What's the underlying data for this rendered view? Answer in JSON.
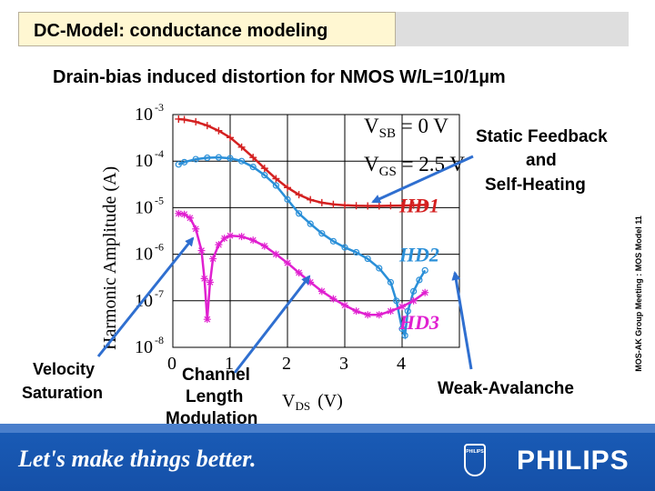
{
  "slide": {
    "title": "DC-Model: conductance modeling",
    "subtitle": "Drain-bias induced distortion for NMOS W/L=10/1µm",
    "side_note": "MOS-AK Group Meeting : MOS Model 11",
    "footer_slogan": "Let's make things better.",
    "brand": "PHILIPS",
    "shield_text": "PHILIPS"
  },
  "annotations": {
    "vsb_main": "V",
    "vsb_sub": "SB",
    "vsb_value": " = 0 V",
    "vgs_main": "V",
    "vgs_sub": "GS",
    "vgs_value": " = 2.5 V",
    "static_feedback": "Static Feedback",
    "and": "and",
    "self_heating": "Self-Heating",
    "velocity": "Velocity",
    "saturation": "Saturation",
    "channel": "Channel",
    "length": "Length",
    "modulation": "Modulation",
    "weak_avalanche": "Weak-Avalanche"
  },
  "colors": {
    "hd1": "#d42020",
    "hd2": "#2a8fd8",
    "hd3": "#e020d0",
    "arrow": "#2f6fd0",
    "title_bg": "#fff7d2",
    "footer": "#1a5cb7"
  },
  "chart_data": {
    "type": "line",
    "title": "",
    "xlabel_main": "V",
    "xlabel_sub": "DS",
    "xlabel_unit": "(V)",
    "ylabel": "Harmonic Amplitude (A)",
    "xlim": [
      0,
      5
    ],
    "ylim_exp": [
      -8,
      -3
    ],
    "y_scale": "log",
    "grid": true,
    "x_ticks": [
      "0",
      "1",
      "2",
      "3",
      "4"
    ],
    "y_ticks": [
      {
        "base": "10",
        "exp": "-3"
      },
      {
        "base": "10",
        "exp": "-4"
      },
      {
        "base": "10",
        "exp": "-5"
      },
      {
        "base": "10",
        "exp": "-6"
      },
      {
        "base": "10",
        "exp": "-7"
      },
      {
        "base": "10",
        "exp": "-8"
      }
    ],
    "series": [
      {
        "name": "HD1",
        "color": "#d42020",
        "marker": "plus",
        "points": [
          [
            0.1,
            0.0008
          ],
          [
            0.2,
            0.00078
          ],
          [
            0.4,
            0.0007
          ],
          [
            0.6,
            0.00058
          ],
          [
            0.8,
            0.00045
          ],
          [
            1.0,
            0.00032
          ],
          [
            1.2,
            0.0002
          ],
          [
            1.4,
            0.00012
          ],
          [
            1.6,
            7e-05
          ],
          [
            1.8,
            4.2e-05
          ],
          [
            2.0,
            2.7e-05
          ],
          [
            2.2,
            1.9e-05
          ],
          [
            2.4,
            1.48e-05
          ],
          [
            2.6,
            1.28e-05
          ],
          [
            2.8,
            1.18e-05
          ],
          [
            3.0,
            1.13e-05
          ],
          [
            3.2,
            1.1e-05
          ],
          [
            3.4,
            1.09e-05
          ],
          [
            3.6,
            1.09e-05
          ],
          [
            3.8,
            1.1e-05
          ],
          [
            4.0,
            1.11e-05
          ],
          [
            4.2,
            1.13e-05
          ],
          [
            4.4,
            1.15e-05
          ]
        ]
      },
      {
        "name": "HD2",
        "color": "#2a8fd8",
        "marker": "circle",
        "points": [
          [
            0.1,
            8.5e-05
          ],
          [
            0.2,
            9.5e-05
          ],
          [
            0.4,
            0.00011
          ],
          [
            0.6,
            0.000118
          ],
          [
            0.8,
            0.00012
          ],
          [
            1.0,
            0.000115
          ],
          [
            1.2,
            0.0001
          ],
          [
            1.4,
            7.5e-05
          ],
          [
            1.6,
            5e-05
          ],
          [
            1.8,
            3e-05
          ],
          [
            2.0,
            1.5e-05
          ],
          [
            2.2,
            7.5e-06
          ],
          [
            2.4,
            4.5e-06
          ],
          [
            2.6,
            2.8e-06
          ],
          [
            2.8,
            1.9e-06
          ],
          [
            3.0,
            1.4e-06
          ],
          [
            3.2,
            1.1e-06
          ],
          [
            3.4,
            8e-07
          ],
          [
            3.6,
            5e-07
          ],
          [
            3.8,
            2.5e-07
          ],
          [
            3.9,
            1e-07
          ],
          [
            4.0,
            2.5e-08
          ],
          [
            4.05,
            1.8e-08
          ],
          [
            4.1,
            6e-08
          ],
          [
            4.2,
            1.6e-07
          ],
          [
            4.3,
            2.8e-07
          ],
          [
            4.4,
            4.5e-07
          ]
        ]
      },
      {
        "name": "HD3",
        "color": "#e020d0",
        "marker": "star",
        "points": [
          [
            0.1,
            7.5e-06
          ],
          [
            0.2,
            7.2e-06
          ],
          [
            0.3,
            6e-06
          ],
          [
            0.4,
            3.5e-06
          ],
          [
            0.5,
            1.2e-06
          ],
          [
            0.55,
            3e-07
          ],
          [
            0.6,
            4e-08
          ],
          [
            0.65,
            2.5e-07
          ],
          [
            0.7,
            8e-07
          ],
          [
            0.8,
            1.6e-06
          ],
          [
            0.9,
            2.2e-06
          ],
          [
            1.0,
            2.5e-06
          ],
          [
            1.2,
            2.4e-06
          ],
          [
            1.4,
            2e-06
          ],
          [
            1.6,
            1.5e-06
          ],
          [
            1.8,
            1e-06
          ],
          [
            2.0,
            6.5e-07
          ],
          [
            2.2,
            4e-07
          ],
          [
            2.4,
            2.5e-07
          ],
          [
            2.6,
            1.6e-07
          ],
          [
            2.8,
            1.1e-07
          ],
          [
            3.0,
            8e-08
          ],
          [
            3.2,
            6e-08
          ],
          [
            3.4,
            5e-08
          ],
          [
            3.6,
            5e-08
          ],
          [
            3.8,
            6e-08
          ],
          [
            4.0,
            7.5e-08
          ],
          [
            4.2,
            1e-07
          ],
          [
            4.4,
            1.5e-07
          ]
        ]
      }
    ],
    "series_labels": [
      {
        "name": "HD1",
        "x": 3.95,
        "y": 1.15e-05
      },
      {
        "name": "HD2",
        "x": 3.95,
        "y": 1e-06
      },
      {
        "name": "HD3",
        "x": 3.95,
        "y": 3.5e-08
      }
    ]
  }
}
